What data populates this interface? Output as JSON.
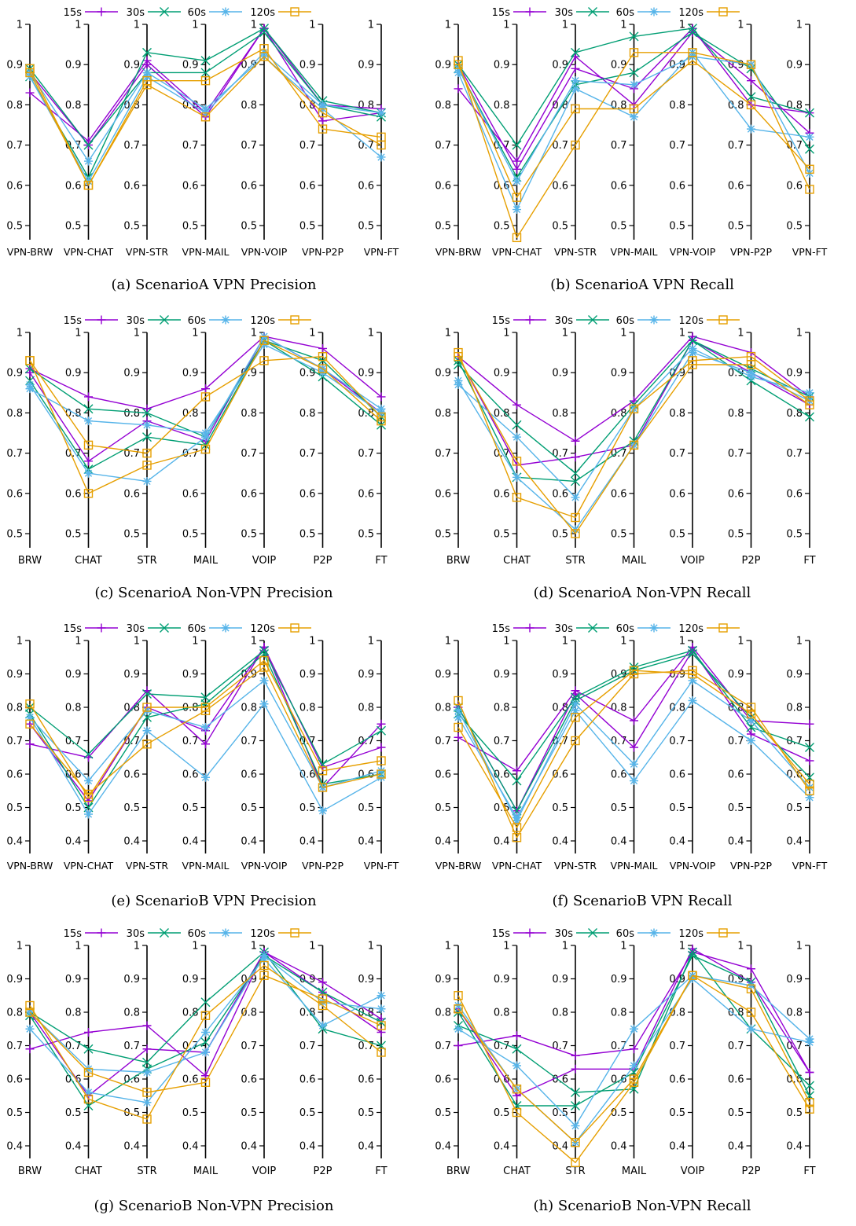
{
  "legend": [
    {
      "name": "15s",
      "color": "#9400d3",
      "marker": "plus"
    },
    {
      "name": "30s",
      "color": "#009e73",
      "marker": "cross"
    },
    {
      "name": "60s",
      "color": "#56b4e9",
      "marker": "star"
    },
    {
      "name": "120s",
      "color": "#e69f00",
      "marker": "square"
    }
  ],
  "chart_data": [
    {
      "type": "line",
      "caption": "(a) ScenarioA VPN Precision",
      "categories": [
        "VPN-BRW",
        "VPN-CHAT",
        "VPN-STR",
        "VPN-MAIL",
        "VPN-VOIP",
        "VPN-P2P",
        "VPN-FT"
      ],
      "ylim": [
        0.5,
        1
      ],
      "yticks": [
        "0.5",
        "0.6",
        "0.7",
        "0.8",
        "0.9",
        "1"
      ],
      "series": [
        {
          "name": "15s",
          "lines": [
            [
              0.83,
              0.71,
              0.91,
              0.78,
              0.99,
              0.76,
              0.78
            ],
            [
              0.88,
              0.7,
              0.9,
              0.77,
              0.99,
              0.8,
              0.79
            ]
          ]
        },
        {
          "name": "30s",
          "lines": [
            [
              0.87,
              0.62,
              0.93,
              0.91,
              0.99,
              0.81,
              0.78
            ],
            [
              0.89,
              0.7,
              0.88,
              0.88,
              0.98,
              0.8,
              0.77
            ]
          ]
        },
        {
          "name": "60s",
          "lines": [
            [
              0.88,
              0.66,
              0.88,
              0.79,
              0.92,
              0.79,
              0.67
            ],
            [
              0.87,
              0.61,
              0.87,
              0.78,
              0.93,
              0.8,
              0.78
            ]
          ]
        },
        {
          "name": "120s",
          "lines": [
            [
              0.89,
              0.6,
              0.86,
              0.86,
              0.94,
              0.74,
              0.72
            ],
            [
              0.88,
              0.6,
              0.85,
              0.77,
              0.92,
              0.78,
              0.7
            ]
          ]
        }
      ]
    },
    {
      "type": "line",
      "caption": "(b) ScenarioA VPN Recall",
      "categories": [
        "VPN-BRW",
        "VPN-CHAT",
        "VPN-STR",
        "VPN-MAIL",
        "VPN-VOIP",
        "VPN-P2P",
        "VPN-FT"
      ],
      "ylim": [
        0.5,
        1
      ],
      "yticks": [
        "0.5",
        "0.6",
        "0.7",
        "0.8",
        "0.9",
        "1"
      ],
      "series": [
        {
          "name": "15s",
          "lines": [
            [
              0.84,
              0.66,
              0.92,
              0.8,
              0.98,
              0.86,
              0.73
            ],
            [
              0.9,
              0.64,
              0.89,
              0.84,
              0.99,
              0.8,
              0.78
            ]
          ]
        },
        {
          "name": "30s",
          "lines": [
            [
              0.9,
              0.7,
              0.93,
              0.97,
              0.99,
              0.82,
              0.78
            ],
            [
              0.89,
              0.62,
              0.85,
              0.88,
              0.98,
              0.89,
              0.69
            ]
          ]
        },
        {
          "name": "60s",
          "lines": [
            [
              0.88,
              0.54,
              0.84,
              0.77,
              0.93,
              0.74,
              0.72
            ],
            [
              0.89,
              0.61,
              0.86,
              0.85,
              0.92,
              0.9,
              0.63
            ]
          ]
        },
        {
          "name": "120s",
          "lines": [
            [
              0.91,
              0.47,
              0.7,
              0.93,
              0.93,
              0.9,
              0.59
            ],
            [
              0.9,
              0.57,
              0.79,
              0.79,
              0.91,
              0.8,
              0.64
            ]
          ]
        }
      ]
    },
    {
      "type": "line",
      "caption": "(c) ScenarioA Non-VPN Precision",
      "categories": [
        "BRW",
        "CHAT",
        "STR",
        "MAIL",
        "VOIP",
        "P2P",
        "FT"
      ],
      "ylim": [
        0.5,
        1
      ],
      "yticks": [
        "0.5",
        "0.6",
        "0.7",
        "0.8",
        "0.9",
        "1"
      ],
      "series": [
        {
          "name": "15s",
          "lines": [
            [
              0.91,
              0.84,
              0.81,
              0.86,
              0.99,
              0.96,
              0.84
            ],
            [
              0.9,
              0.68,
              0.78,
              0.73,
              0.99,
              0.91,
              0.8
            ]
          ]
        },
        {
          "name": "30s",
          "lines": [
            [
              0.91,
              0.81,
              0.8,
              0.74,
              0.98,
              0.89,
              0.77
            ],
            [
              0.88,
              0.66,
              0.74,
              0.72,
              0.98,
              0.93,
              0.79
            ]
          ]
        },
        {
          "name": "60s",
          "lines": [
            [
              0.86,
              0.78,
              0.77,
              0.75,
              0.97,
              0.9,
              0.8
            ],
            [
              0.87,
              0.65,
              0.63,
              0.74,
              0.99,
              0.91,
              0.81
            ]
          ]
        },
        {
          "name": "120s",
          "lines": [
            [
              0.93,
              0.72,
              0.7,
              0.84,
              0.93,
              0.94,
              0.79
            ],
            [
              0.93,
              0.6,
              0.67,
              0.71,
              0.98,
              0.91,
              0.78
            ]
          ]
        }
      ]
    },
    {
      "type": "line",
      "caption": "(d) ScenarioA Non-VPN Recall",
      "categories": [
        "BRW",
        "CHAT",
        "STR",
        "MAIL",
        "VOIP",
        "P2P",
        "FT"
      ],
      "ylim": [
        0.5,
        1
      ],
      "yticks": [
        "0.5",
        "0.6",
        "0.7",
        "0.8",
        "0.9",
        "1"
      ],
      "series": [
        {
          "name": "15s",
          "lines": [
            [
              0.94,
              0.82,
              0.73,
              0.83,
              0.99,
              0.95,
              0.84
            ],
            [
              0.94,
              0.67,
              0.69,
              0.72,
              0.98,
              0.9,
              0.82
            ]
          ]
        },
        {
          "name": "30s",
          "lines": [
            [
              0.92,
              0.77,
              0.65,
              0.82,
              0.98,
              0.88,
              0.79
            ],
            [
              0.93,
              0.64,
              0.63,
              0.73,
              0.98,
              0.91,
              0.84
            ]
          ]
        },
        {
          "name": "60s",
          "lines": [
            [
              0.87,
              0.74,
              0.59,
              0.81,
              0.96,
              0.89,
              0.85
            ],
            [
              0.88,
              0.64,
              0.51,
              0.72,
              0.95,
              0.9,
              0.83
            ]
          ]
        },
        {
          "name": "120s",
          "lines": [
            [
              0.95,
              0.59,
              0.54,
              0.81,
              0.93,
              0.94,
              0.83
            ],
            [
              0.94,
              0.68,
              0.5,
              0.72,
              0.92,
              0.92,
              0.82
            ]
          ]
        }
      ]
    },
    {
      "type": "line",
      "caption": "(e) ScenarioB VPN Precision",
      "categories": [
        "VPN-BRW",
        "VPN-CHAT",
        "VPN-STR",
        "VPN-MAIL",
        "VPN-VOIP",
        "VPN-P2P",
        "VPN-FT"
      ],
      "ylim": [
        0.4,
        1
      ],
      "yticks": [
        "0.4",
        "0.5",
        "0.6",
        "0.7",
        "0.8",
        "0.9",
        "1"
      ],
      "series": [
        {
          "name": "15s",
          "lines": [
            [
              0.69,
              0.65,
              0.85,
              0.69,
              0.98,
              0.56,
              0.75
            ],
            [
              0.75,
              0.52,
              0.8,
              0.73,
              0.98,
              0.62,
              0.68
            ]
          ]
        },
        {
          "name": "30s",
          "lines": [
            [
              0.8,
              0.66,
              0.84,
              0.83,
              0.97,
              0.63,
              0.73
            ],
            [
              0.78,
              0.5,
              0.77,
              0.81,
              0.96,
              0.57,
              0.6
            ]
          ]
        },
        {
          "name": "60s",
          "lines": [
            [
              0.77,
              0.48,
              0.73,
              0.59,
              0.81,
              0.49,
              0.59
            ],
            [
              0.77,
              0.58,
              0.79,
              0.74,
              0.88,
              0.56,
              0.61
            ]
          ]
        },
        {
          "name": "120s",
          "lines": [
            [
              0.81,
              0.53,
              0.8,
              0.8,
              0.94,
              0.61,
              0.64
            ],
            [
              0.75,
              0.54,
              0.69,
              0.79,
              0.92,
              0.56,
              0.6
            ]
          ]
        }
      ]
    },
    {
      "type": "line",
      "caption": "(f) ScenarioB VPN Recall",
      "categories": [
        "VPN-BRW",
        "VPN-CHAT",
        "VPN-STR",
        "VPN-MAIL",
        "VPN-VOIP",
        "VPN-P2P",
        "VPN-FT"
      ],
      "ylim": [
        0.4,
        1
      ],
      "yticks": [
        "0.4",
        "0.5",
        "0.6",
        "0.7",
        "0.8",
        "0.9",
        "1"
      ],
      "series": [
        {
          "name": "15s",
          "lines": [
            [
              0.71,
              0.61,
              0.85,
              0.76,
              0.98,
              0.76,
              0.75
            ],
            [
              0.8,
              0.49,
              0.84,
              0.68,
              0.97,
              0.72,
              0.64
            ]
          ]
        },
        {
          "name": "30s",
          "lines": [
            [
              0.78,
              0.58,
              0.83,
              0.92,
              0.97,
              0.74,
              0.68
            ],
            [
              0.8,
              0.49,
              0.82,
              0.91,
              0.96,
              0.77,
              0.59
            ]
          ]
        },
        {
          "name": "60s",
          "lines": [
            [
              0.77,
              0.47,
              0.79,
              0.58,
              0.82,
              0.7,
              0.53
            ],
            [
              0.79,
              0.46,
              0.81,
              0.63,
              0.88,
              0.76,
              0.56
            ]
          ]
        },
        {
          "name": "120s",
          "lines": [
            [
              0.82,
              0.41,
              0.7,
              0.9,
              0.91,
              0.8,
              0.55
            ],
            [
              0.74,
              0.44,
              0.77,
              0.91,
              0.9,
              0.78,
              0.57
            ]
          ]
        }
      ]
    },
    {
      "type": "line",
      "caption": "(g) ScenarioB Non-VPN Precision",
      "categories": [
        "BRW",
        "CHAT",
        "STR",
        "MAIL",
        "VOIP",
        "P2P",
        "FT"
      ],
      "ylim": [
        0.4,
        1
      ],
      "yticks": [
        "0.4",
        "0.5",
        "0.6",
        "0.7",
        "0.8",
        "0.9",
        "1"
      ],
      "series": [
        {
          "name": "15s",
          "lines": [
            [
              0.69,
              0.74,
              0.76,
              0.61,
              0.98,
              0.89,
              0.78
            ],
            [
              0.8,
              0.55,
              0.69,
              0.68,
              0.98,
              0.86,
              0.74
            ]
          ]
        },
        {
          "name": "30s",
          "lines": [
            [
              0.8,
              0.69,
              0.65,
              0.83,
              0.98,
              0.75,
              0.7
            ],
            [
              0.79,
              0.52,
              0.63,
              0.71,
              0.97,
              0.86,
              0.77
            ]
          ]
        },
        {
          "name": "60s",
          "lines": [
            [
              0.75,
              0.56,
              0.53,
              0.74,
              0.96,
              0.76,
              0.85
            ],
            [
              0.8,
              0.63,
              0.62,
              0.68,
              0.97,
              0.83,
              0.81
            ]
          ]
        },
        {
          "name": "120s",
          "lines": [
            [
              0.82,
              0.54,
              0.48,
              0.79,
              0.94,
              0.82,
              0.68
            ],
            [
              0.8,
              0.62,
              0.56,
              0.59,
              0.91,
              0.84,
              0.76
            ]
          ]
        }
      ]
    },
    {
      "type": "line",
      "caption": "(h) ScenarioB Non-VPN Recall",
      "categories": [
        "BRW",
        "CHAT",
        "STR",
        "MAIL",
        "VOIP",
        "P2P",
        "FT"
      ],
      "ylim": [
        0.4,
        1
      ],
      "yticks": [
        "0.4",
        "0.5",
        "0.6",
        "0.7",
        "0.8",
        "0.9",
        "1"
      ],
      "series": [
        {
          "name": "15s",
          "lines": [
            [
              0.7,
              0.73,
              0.67,
              0.69,
              0.98,
              0.93,
              0.62
            ],
            [
              0.81,
              0.55,
              0.63,
              0.63,
              0.99,
              0.89,
              0.62
            ]
          ]
        },
        {
          "name": "30s",
          "lines": [
            [
              0.76,
              0.69,
              0.56,
              0.57,
              0.98,
              0.75,
              0.58
            ],
            [
              0.8,
              0.52,
              0.52,
              0.62,
              0.97,
              0.89,
              0.55
            ]
          ]
        },
        {
          "name": "60s",
          "lines": [
            [
              0.75,
              0.64,
              0.46,
              0.75,
              0.91,
              0.88,
              0.72
            ],
            [
              0.82,
              0.57,
              0.41,
              0.64,
              0.9,
              0.75,
              0.71
            ]
          ]
        },
        {
          "name": "120s",
          "lines": [
            [
              0.85,
              0.5,
              0.35,
              0.59,
              0.91,
              0.8,
              0.51
            ],
            [
              0.81,
              0.57,
              0.41,
              0.6,
              0.91,
              0.87,
              0.53
            ]
          ]
        }
      ]
    }
  ]
}
